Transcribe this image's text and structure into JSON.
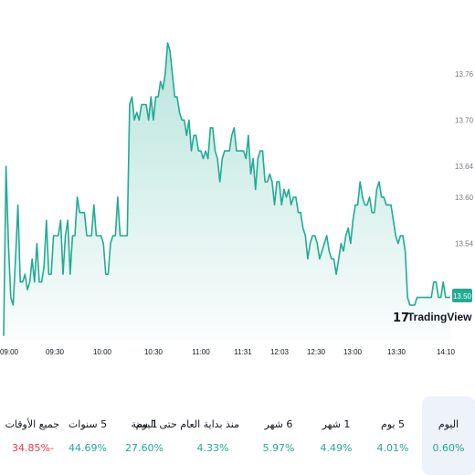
{
  "chart_data": {
    "type": "area",
    "title": "",
    "xlabel": "",
    "ylabel": "",
    "x_ticks": [
      "09:00",
      "09:30",
      "10:00",
      "10:30",
      "11:00",
      "11:31",
      "12:03",
      "12:30",
      "13:00",
      "13:30",
      "14:10"
    ],
    "y_ticks": [
      13.54,
      13.6,
      13.64,
      13.7,
      13.76
    ],
    "ylim": [
      13.415,
      13.832
    ],
    "current_price": "13.50",
    "line_color": "#22ab94",
    "series": [
      {
        "values": [
          13.42,
          13.64,
          13.54,
          13.47,
          13.46,
          13.52,
          13.59,
          13.49,
          13.49,
          13.5,
          13.48,
          13.49,
          13.52,
          13.49,
          13.54,
          13.49,
          13.49,
          13.51,
          13.57,
          13.5,
          13.5,
          13.55,
          13.55,
          13.55,
          13.57,
          13.5,
          13.55,
          13.57,
          13.5,
          13.55,
          13.55,
          13.6,
          13.58,
          13.58,
          13.58,
          13.55,
          13.55,
          13.55,
          13.59,
          13.55,
          13.55,
          13.55,
          13.54,
          13.5,
          13.5,
          13.54,
          13.55,
          13.55,
          13.6,
          13.55,
          13.55,
          13.55,
          13.55,
          13.72,
          13.73,
          13.7,
          13.71,
          13.7,
          13.72,
          13.72,
          13.72,
          13.7,
          13.73,
          13.7,
          13.73,
          13.73,
          13.75,
          13.74,
          13.76,
          13.8,
          13.79,
          13.76,
          13.73,
          13.73,
          13.71,
          13.7,
          13.7,
          13.68,
          13.7,
          13.66,
          13.68,
          13.68,
          13.66,
          13.66,
          13.65,
          13.66,
          13.65,
          13.69,
          13.69,
          13.66,
          13.65,
          13.62,
          13.65,
          13.66,
          13.66,
          13.66,
          13.68,
          13.69,
          13.66,
          13.66,
          13.66,
          13.66,
          13.65,
          13.68,
          13.63,
          13.65,
          13.61,
          13.65,
          13.66,
          13.66,
          13.62,
          13.62,
          13.63,
          13.62,
          13.59,
          13.62,
          13.62,
          13.59,
          13.61,
          13.6,
          13.61,
          13.59,
          13.6,
          13.6,
          13.58,
          13.58,
          13.56,
          13.55,
          13.52,
          13.54,
          13.55,
          13.55,
          13.54,
          13.52,
          13.53,
          13.54,
          13.55,
          13.53,
          13.52,
          13.52,
          13.5,
          13.52,
          13.54,
          13.53,
          13.55,
          13.56,
          13.54,
          13.57,
          13.59,
          13.59,
          13.62,
          13.6,
          13.59,
          13.59,
          13.6,
          13.58,
          13.58,
          13.61,
          13.62,
          13.6,
          13.6,
          13.59,
          13.59,
          13.59,
          13.57,
          13.55,
          13.54,
          13.55,
          13.55,
          13.53,
          13.47,
          13.46,
          13.46,
          13.46,
          13.47,
          13.47,
          13.47,
          13.47,
          13.47,
          13.47,
          13.47,
          13.49,
          13.49,
          13.47,
          13.47,
          13.49,
          13.47,
          13.47,
          13.47
        ]
      }
    ]
  },
  "logo": {
    "mark": "17",
    "text": "TradingView"
  },
  "periods": [
    {
      "label": "جميع الأوقات",
      "value": "34.85%-",
      "tone": "neg",
      "active": false
    },
    {
      "label": "5 سنوات",
      "value": "44.69%",
      "tone": "pos",
      "active": false
    },
    {
      "label": "1 سنة",
      "value": "27.60%",
      "tone": "pos",
      "active": false
    },
    {
      "label": "منذ بداية العام حتى اليوم",
      "value": "4.33%",
      "tone": "pos",
      "active": false
    },
    {
      "label": "6 شهر",
      "value": "5.97%",
      "tone": "pos",
      "active": false
    },
    {
      "label": "1 شهر",
      "value": "4.49%",
      "tone": "pos",
      "active": false
    },
    {
      "label": "5 يوم",
      "value": "4.01%",
      "tone": "pos",
      "active": false
    },
    {
      "label": "اليوم",
      "value": "0.60%",
      "tone": "pos",
      "active": true
    }
  ]
}
